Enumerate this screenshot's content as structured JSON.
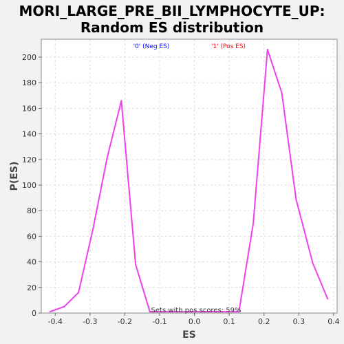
{
  "chart_data": {
    "type": "line",
    "title_line1": "MORI_LARGE_PRE_BII_LYMPHOCYTE_UP:",
    "title_line2": "Random ES distribution",
    "xlabel": "ES",
    "ylabel": "P(ES)",
    "xlim": [
      -0.44,
      0.41
    ],
    "ylim": [
      0,
      214
    ],
    "xticks": [
      "-0.4",
      "-0.3",
      "-0.2",
      "-0.1",
      "0.0",
      "0.1",
      "0.2",
      "0.3",
      "0.4"
    ],
    "yticks": [
      "0",
      "20",
      "40",
      "60",
      "80",
      "100",
      "120",
      "140",
      "160",
      "180",
      "200"
    ],
    "grid": true,
    "legend": [
      {
        "label": "'0' (Neg ES)",
        "color": "#0000ff"
      },
      {
        "label": "'1' (Pos ES)",
        "color": "#ff0000"
      }
    ],
    "annotation": "Sets with pos scores: 59%",
    "series": [
      {
        "color": "#ee40ee",
        "x": [
          -0.415,
          -0.374,
          -0.333,
          -0.292,
          -0.251,
          -0.21,
          -0.169,
          -0.128,
          0.128,
          0.169,
          0.21,
          0.251,
          0.292,
          0.34,
          0.383
        ],
        "y": [
          1,
          5,
          16,
          65,
          121,
          166,
          38,
          1,
          1,
          70,
          206,
          172,
          89,
          39,
          11
        ]
      }
    ]
  }
}
